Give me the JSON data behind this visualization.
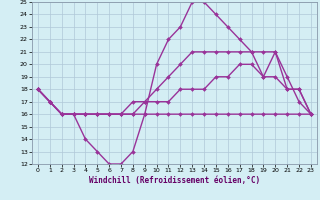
{
  "xlabel": "Windchill (Refroidissement éolien,°C)",
  "xlim": [
    -0.5,
    23.5
  ],
  "ylim": [
    12,
    25
  ],
  "yticks": [
    12,
    13,
    14,
    15,
    16,
    17,
    18,
    19,
    20,
    21,
    22,
    23,
    24,
    25
  ],
  "xticks": [
    0,
    1,
    2,
    3,
    4,
    5,
    6,
    7,
    8,
    9,
    10,
    11,
    12,
    13,
    14,
    15,
    16,
    17,
    18,
    19,
    20,
    21,
    22,
    23
  ],
  "background_color": "#d4eef4",
  "grid_color": "#b0c8d8",
  "line_color": "#993399",
  "line_width": 1.0,
  "marker_size": 2.0,
  "lines": [
    [
      18,
      17,
      16,
      16,
      14,
      13,
      12,
      12,
      13,
      16,
      20,
      22,
      23,
      25,
      25,
      24,
      23,
      22,
      21,
      19,
      21,
      18,
      18,
      16
    ],
    [
      18,
      17,
      16,
      16,
      16,
      16,
      16,
      16,
      17,
      17,
      17,
      17,
      18,
      18,
      18,
      19,
      19,
      20,
      20,
      19,
      19,
      18,
      18,
      16
    ],
    [
      18,
      17,
      16,
      16,
      16,
      16,
      16,
      16,
      16,
      16,
      16,
      16,
      16,
      16,
      16,
      16,
      16,
      16,
      16,
      16,
      16,
      16,
      16,
      16
    ],
    [
      18,
      17,
      16,
      16,
      16,
      16,
      16,
      16,
      16,
      17,
      18,
      19,
      20,
      21,
      21,
      21,
      21,
      21,
      21,
      21,
      21,
      19,
      17,
      16
    ]
  ]
}
